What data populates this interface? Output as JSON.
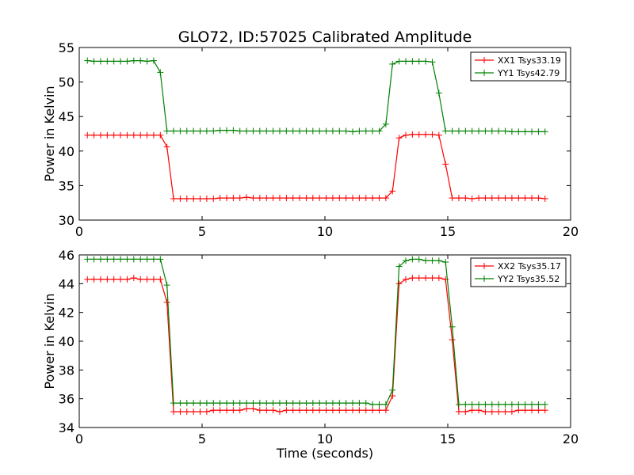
{
  "chart_data": [
    {
      "type": "line",
      "title": "GLO72, ID:57025 Calibrated Amplitude",
      "xlabel": "",
      "ylabel": "Power in Kelvin",
      "xlim": [
        0,
        20
      ],
      "ylim": [
        30,
        55
      ],
      "xticks": [
        "0",
        "5",
        "10",
        "15",
        "20"
      ],
      "yticks": [
        "30",
        "35",
        "40",
        "45",
        "50",
        "55"
      ],
      "legend_position": "upper right",
      "x": [
        0.33,
        0.6,
        0.87,
        1.14,
        1.41,
        1.68,
        1.95,
        2.22,
        2.49,
        2.76,
        3.03,
        3.3,
        3.57,
        3.84,
        4.11,
        4.38,
        4.65,
        4.92,
        5.19,
        5.46,
        5.73,
        6.0,
        6.27,
        6.54,
        6.81,
        7.08,
        7.35,
        7.62,
        7.89,
        8.16,
        8.43,
        8.7,
        8.97,
        9.24,
        9.51,
        9.78,
        10.05,
        10.32,
        10.59,
        10.86,
        11.13,
        11.4,
        11.67,
        11.94,
        12.21,
        12.48,
        12.75,
        13.02,
        13.29,
        13.56,
        13.83,
        14.1,
        14.37,
        14.64,
        14.91,
        15.18,
        15.45,
        15.72,
        15.99,
        16.26,
        16.53,
        16.8,
        17.07,
        17.34,
        17.61,
        17.88,
        18.15,
        18.42,
        18.69,
        18.96
      ],
      "series": [
        {
          "name": "XX1 Tsys33.19",
          "color": "#ff0000",
          "values": [
            42.3,
            42.3,
            42.3,
            42.3,
            42.3,
            42.3,
            42.3,
            42.3,
            42.3,
            42.3,
            42.3,
            42.3,
            40.6,
            33.1,
            33.1,
            33.1,
            33.1,
            33.1,
            33.1,
            33.1,
            33.2,
            33.2,
            33.2,
            33.2,
            33.3,
            33.2,
            33.2,
            33.2,
            33.2,
            33.2,
            33.2,
            33.2,
            33.2,
            33.2,
            33.2,
            33.2,
            33.2,
            33.2,
            33.2,
            33.2,
            33.2,
            33.2,
            33.2,
            33.2,
            33.2,
            33.2,
            34.2,
            41.9,
            42.3,
            42.4,
            42.4,
            42.4,
            42.4,
            42.3,
            38.1,
            33.2,
            33.2,
            33.2,
            33.1,
            33.2,
            33.2,
            33.2,
            33.2,
            33.2,
            33.2,
            33.2,
            33.2,
            33.2,
            33.2,
            33.1
          ]
        },
        {
          "name": "YY1 Tsys42.79",
          "color": "#008000",
          "values": [
            53.1,
            53.0,
            53.0,
            53.0,
            53.0,
            53.0,
            53.0,
            53.1,
            53.1,
            53.0,
            53.1,
            51.4,
            42.9,
            42.9,
            42.9,
            42.9,
            42.9,
            42.9,
            42.9,
            42.9,
            43.0,
            43.0,
            43.0,
            42.9,
            42.9,
            42.9,
            42.9,
            42.9,
            42.9,
            42.9,
            42.9,
            42.9,
            42.9,
            42.9,
            42.9,
            42.9,
            42.9,
            42.9,
            42.9,
            42.9,
            42.8,
            42.9,
            42.9,
            42.9,
            42.9,
            43.9,
            52.6,
            53.0,
            53.0,
            53.0,
            53.0,
            53.0,
            52.9,
            48.4,
            42.9,
            42.9,
            42.9,
            42.9,
            42.9,
            42.9,
            42.9,
            42.9,
            42.9,
            42.9,
            42.8,
            42.8,
            42.8,
            42.8,
            42.8,
            42.8
          ]
        }
      ]
    },
    {
      "type": "line",
      "title": "",
      "xlabel": "Time (seconds)",
      "ylabel": "Power in Kelvin",
      "xlim": [
        0,
        20
      ],
      "ylim": [
        34,
        46
      ],
      "xticks": [
        "0",
        "5",
        "10",
        "15",
        "20"
      ],
      "yticks": [
        "34",
        "36",
        "38",
        "40",
        "42",
        "44",
        "46"
      ],
      "legend_position": "upper right",
      "x": [
        0.33,
        0.6,
        0.87,
        1.14,
        1.41,
        1.68,
        1.95,
        2.22,
        2.49,
        2.76,
        3.03,
        3.3,
        3.57,
        3.84,
        4.11,
        4.38,
        4.65,
        4.92,
        5.19,
        5.46,
        5.73,
        6.0,
        6.27,
        6.54,
        6.81,
        7.08,
        7.35,
        7.62,
        7.89,
        8.16,
        8.43,
        8.7,
        8.97,
        9.24,
        9.51,
        9.78,
        10.05,
        10.32,
        10.59,
        10.86,
        11.13,
        11.4,
        11.67,
        11.94,
        12.21,
        12.48,
        12.75,
        13.02,
        13.29,
        13.56,
        13.83,
        14.1,
        14.37,
        14.64,
        14.91,
        15.18,
        15.45,
        15.72,
        15.99,
        16.26,
        16.53,
        16.8,
        17.07,
        17.34,
        17.61,
        17.88,
        18.15,
        18.42,
        18.69,
        18.96
      ],
      "series": [
        {
          "name": "XX2 Tsys35.17",
          "color": "#ff0000",
          "values": [
            44.3,
            44.3,
            44.3,
            44.3,
            44.3,
            44.3,
            44.3,
            44.4,
            44.3,
            44.3,
            44.3,
            44.3,
            42.7,
            35.1,
            35.1,
            35.1,
            35.1,
            35.1,
            35.1,
            35.2,
            35.2,
            35.2,
            35.2,
            35.2,
            35.3,
            35.3,
            35.2,
            35.2,
            35.2,
            35.1,
            35.2,
            35.2,
            35.2,
            35.2,
            35.2,
            35.2,
            35.2,
            35.2,
            35.2,
            35.2,
            35.2,
            35.2,
            35.2,
            35.2,
            35.2,
            35.2,
            36.2,
            44.0,
            44.3,
            44.4,
            44.4,
            44.4,
            44.4,
            44.4,
            44.3,
            40.1,
            35.1,
            35.1,
            35.2,
            35.2,
            35.1,
            35.1,
            35.1,
            35.1,
            35.1,
            35.2,
            35.2,
            35.2,
            35.2,
            35.2
          ]
        },
        {
          "name": "YY2 Tsys35.52",
          "color": "#008000",
          "values": [
            45.7,
            45.7,
            45.7,
            45.7,
            45.7,
            45.7,
            45.7,
            45.7,
            45.7,
            45.7,
            45.7,
            45.7,
            43.9,
            35.7,
            35.7,
            35.7,
            35.7,
            35.7,
            35.7,
            35.7,
            35.7,
            35.7,
            35.7,
            35.7,
            35.7,
            35.7,
            35.7,
            35.7,
            35.7,
            35.7,
            35.7,
            35.7,
            35.7,
            35.7,
            35.7,
            35.7,
            35.7,
            35.7,
            35.7,
            35.7,
            35.7,
            35.7,
            35.7,
            35.6,
            35.6,
            35.6,
            36.6,
            45.2,
            45.6,
            45.7,
            45.7,
            45.6,
            45.6,
            45.6,
            45.5,
            41.0,
            35.6,
            35.6,
            35.6,
            35.6,
            35.6,
            35.6,
            35.6,
            35.6,
            35.6,
            35.6,
            35.6,
            35.6,
            35.6,
            35.6
          ]
        }
      ]
    }
  ]
}
